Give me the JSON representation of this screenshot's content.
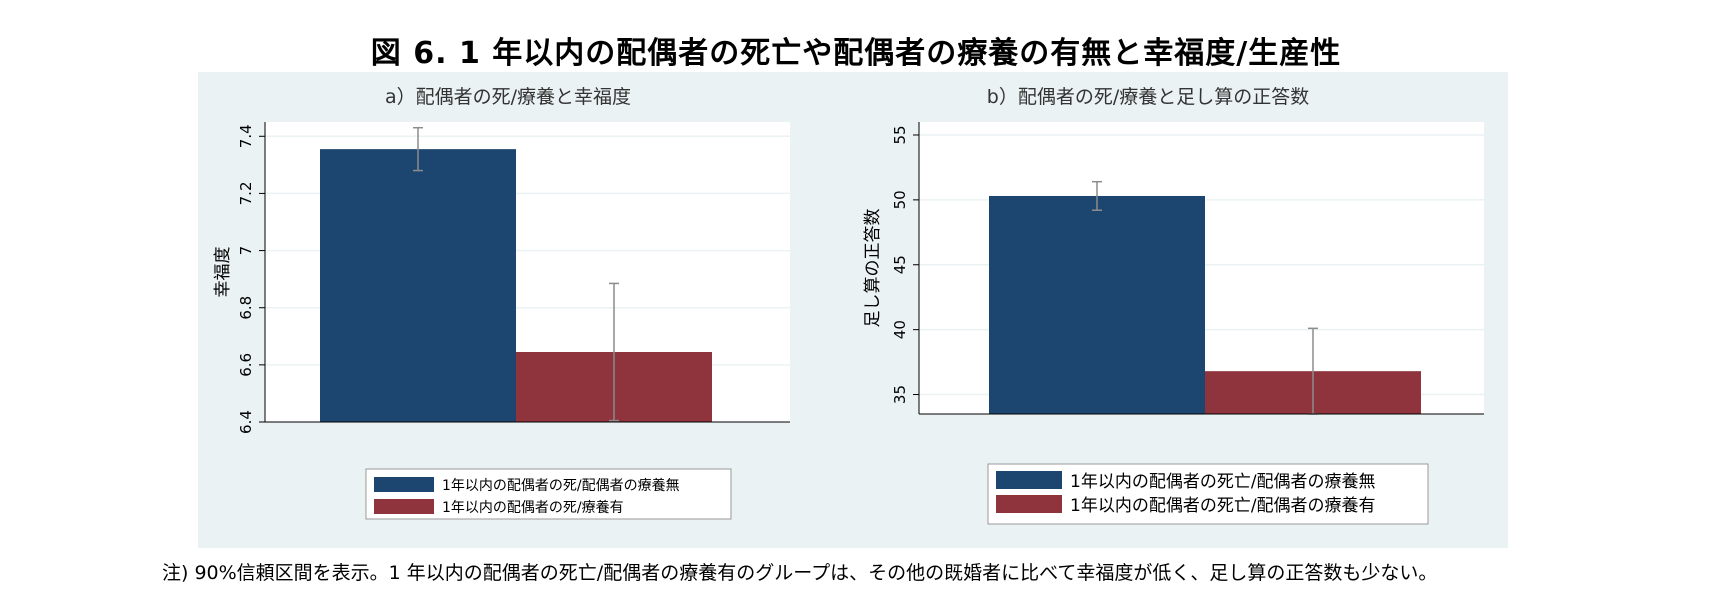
{
  "title": "図 6.  1 年以内の配偶者の死亡や配偶者の療養の有無と幸福度/生産性",
  "note": "注) 90%信頼区間を表示。1 年以内の配偶者の死亡/配偶者の療養有のグループは、その他の既婚者に比べて幸福度が低く、足し算の正答数も少ない。",
  "colors": {
    "series1": "#1c4670",
    "series2": "#8f343c",
    "panel_bg": "#eaf2f3",
    "grid": "#eaf2f3",
    "error_bar": "#8c8c8c"
  },
  "chart_data": [
    {
      "type": "bar",
      "title": "a）配偶者の死/療養と幸福度",
      "xlabel": "",
      "ylabel": "幸福度",
      "ylim": [
        6.4,
        7.45
      ],
      "yticks": [
        6.4,
        6.6,
        6.8,
        7,
        7.2,
        7.4
      ],
      "ytick_labels": [
        "6.4",
        "6.6",
        "6.8",
        "7",
        "7.2",
        "7.4"
      ],
      "grid": true,
      "legend_position": "bottom",
      "series": [
        {
          "name": "1年以内の配偶者の死/配偶者の療養無",
          "value": 7.355,
          "ci": [
            7.28,
            7.43
          ]
        },
        {
          "name": "1年以内の配偶者の死/療養有",
          "value": 6.645,
          "ci": [
            6.405,
            6.885
          ]
        }
      ]
    },
    {
      "type": "bar",
      "title": "b）配偶者の死/療養と足し算の正答数",
      "xlabel": "",
      "ylabel": "足し算の正答数",
      "ylim": [
        33.5,
        56
      ],
      "yticks": [
        35,
        40,
        45,
        50,
        55
      ],
      "ytick_labels": [
        "35",
        "40",
        "45",
        "50",
        "55"
      ],
      "grid": true,
      "legend_position": "bottom",
      "series": [
        {
          "name": "1年以内の配偶者の死亡/配偶者の療養無",
          "value": 50.3,
          "ci": [
            49.2,
            51.4
          ]
        },
        {
          "name": "1年以内の配偶者の死亡/配偶者の療養有",
          "value": 36.8,
          "ci": [
            33.5,
            40.1
          ]
        }
      ]
    }
  ]
}
